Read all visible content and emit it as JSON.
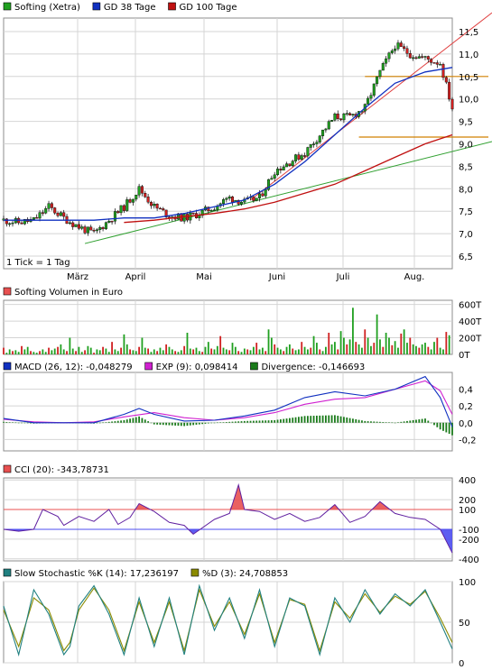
{
  "colors": {
    "background": "#ffffff",
    "grid": "#d4d4d4",
    "frame": "#8c8c8c",
    "candle_up": "#20a020",
    "candle_down": "#d02020",
    "sma38": "#1030c0",
    "sma100": "#c01010",
    "trend_red": "#e04040",
    "trend_green": "#30a030",
    "orange_line": "#d08000",
    "macd": "#1030c0",
    "signal": "#d020d0",
    "divergence": "#1a7a1a",
    "cci_pos_fill": "#e85050",
    "cci_neg_fill": "#4d4df0",
    "cci_line": "#6020a0",
    "stoch_k": "#208080",
    "stoch_d": "#8a8a00"
  },
  "x_axis": {
    "months": [
      "März",
      "April",
      "Mai",
      "Juni",
      "Juli",
      "Aug."
    ],
    "tick_note": "1 Tick = 1 Tag"
  },
  "price_panel": {
    "legend": [
      {
        "label": "Softing (Xetra)",
        "color": "#20a020"
      },
      {
        "label": "GD 38 Tage",
        "color": "#1030c0"
      },
      {
        "label": "GD 100 Tage",
        "color": "#c01010"
      }
    ],
    "y_ticks": [
      "11,5",
      "11,0",
      "10,5",
      "10,0",
      "9,5",
      "9,0",
      "8,5",
      "8,0",
      "7,5",
      "7,0",
      "6,5"
    ]
  },
  "volume_panel": {
    "legend": [
      {
        "label": "Softing Volumen in Euro",
        "color": "#e85050"
      }
    ],
    "y_ticks": [
      "600T",
      "400T",
      "200T",
      "0T"
    ]
  },
  "macd_panel": {
    "legend": [
      {
        "label": "MACD (26, 12): -0,048279",
        "color": "#1030c0"
      },
      {
        "label": "EXP (9): 0,098414",
        "color": "#d020d0"
      },
      {
        "label": "Divergence: -0,146693",
        "color": "#1a7a1a"
      }
    ],
    "y_ticks": [
      "0,4",
      "0,2",
      "0,0",
      "-0,2"
    ]
  },
  "cci_panel": {
    "legend": [
      {
        "label": "CCI (20): -343,78731",
        "color": "#e85050"
      }
    ],
    "y_ticks": [
      "400",
      "200",
      "100",
      "-100",
      "-200",
      "-400"
    ]
  },
  "stoch_panel": {
    "legend": [
      {
        "label": "Slow Stochastic %K (14): 17,236197",
        "color": "#208080"
      },
      {
        "label": "%D (3): 24,708853",
        "color": "#8a8a00"
      }
    ],
    "y_ticks": [
      "100",
      "50",
      "0"
    ]
  },
  "chart_data": [
    {
      "type": "line",
      "title": "Softing (Xetra)",
      "x_months": [
        "März",
        "April",
        "Mai",
        "Juni",
        "Juli",
        "Aug."
      ],
      "ylim": [
        6.4,
        11.8
      ],
      "series": [
        {
          "name": "Softing (Xetra)",
          "x": [
            0,
            5,
            10,
            15,
            20,
            25,
            30,
            35,
            40,
            45,
            50,
            55,
            60,
            65,
            70,
            75,
            80,
            85,
            90,
            95,
            100,
            105,
            110,
            115,
            120,
            125,
            130,
            135,
            140,
            145,
            149
          ],
          "values": [
            7.3,
            7.25,
            7.3,
            7.6,
            7.35,
            7.15,
            7.0,
            7.3,
            7.6,
            8.0,
            7.6,
            7.4,
            7.35,
            7.45,
            7.6,
            7.8,
            7.7,
            7.8,
            8.4,
            8.6,
            8.8,
            9.2,
            9.6,
            9.6,
            9.8,
            10.6,
            11.2,
            11.0,
            10.9,
            10.8,
            9.8
          ]
        },
        {
          "name": "GD 38 Tage",
          "x": [
            0,
            10,
            20,
            30,
            40,
            50,
            60,
            70,
            80,
            90,
            100,
            110,
            120,
            130,
            140,
            149
          ],
          "values": [
            7.3,
            7.3,
            7.3,
            7.3,
            7.35,
            7.35,
            7.45,
            7.6,
            7.75,
            8.1,
            8.6,
            9.2,
            9.8,
            10.35,
            10.6,
            10.7
          ]
        },
        {
          "name": "GD 100 Tage",
          "x": [
            40,
            50,
            60,
            70,
            80,
            90,
            100,
            110,
            120,
            130,
            140,
            149
          ],
          "values": [
            7.25,
            7.3,
            7.38,
            7.45,
            7.55,
            7.7,
            7.9,
            8.1,
            8.4,
            8.7,
            9.0,
            9.2
          ]
        }
      ]
    },
    {
      "type": "bar",
      "title": "Softing Volumen in Euro",
      "ylim": [
        0,
        650
      ],
      "values": [
        80,
        20,
        60,
        40,
        50,
        30,
        100,
        60,
        90,
        40,
        30,
        20,
        40,
        60,
        30,
        80,
        50,
        70,
        90,
        120,
        60,
        40,
        200,
        70,
        40,
        90,
        30,
        50,
        100,
        80,
        20,
        60,
        50,
        90,
        70,
        30,
        150,
        60,
        40,
        80,
        240,
        120,
        60,
        50,
        40,
        90,
        200,
        80,
        70,
        30,
        60,
        40,
        80,
        50,
        120,
        90,
        60,
        40,
        30,
        50,
        100,
        260,
        70,
        60,
        80,
        40,
        30,
        90,
        150,
        70,
        60,
        100,
        220,
        80,
        60,
        50,
        140,
        90,
        40,
        30,
        70,
        60,
        50,
        90,
        140,
        60,
        80,
        40,
        300,
        200,
        120,
        80,
        60,
        40,
        90,
        120,
        70,
        50,
        60,
        150,
        90,
        60,
        80,
        220,
        140,
        60,
        40,
        90,
        260,
        120,
        150,
        60,
        280,
        200,
        120,
        180,
        560,
        150,
        120,
        80,
        300,
        200,
        100,
        140,
        480,
        180,
        90,
        260,
        200,
        110,
        160,
        80,
        250,
        300,
        140,
        200,
        120,
        100,
        80,
        120,
        140,
        90,
        60,
        150,
        200,
        80,
        60,
        270,
        230
      ]
    },
    {
      "type": "line",
      "title": "MACD (26, 12)",
      "ylim": [
        -0.25,
        0.65
      ],
      "series": [
        {
          "name": "MACD (26, 12)",
          "x": [
            0,
            10,
            20,
            30,
            40,
            45,
            50,
            60,
            70,
            80,
            90,
            100,
            110,
            120,
            130,
            140,
            145,
            149
          ],
          "values": [
            0.05,
            0.0,
            0.0,
            0.0,
            0.1,
            0.17,
            0.1,
            0.02,
            0.03,
            0.08,
            0.15,
            0.3,
            0.37,
            0.32,
            0.4,
            0.55,
            0.3,
            -0.05
          ]
        },
        {
          "name": "EXP (9)",
          "x": [
            0,
            10,
            20,
            30,
            40,
            50,
            60,
            70,
            80,
            90,
            100,
            110,
            120,
            130,
            140,
            145,
            149
          ],
          "values": [
            0.04,
            0.01,
            0.0,
            0.01,
            0.07,
            0.12,
            0.06,
            0.03,
            0.06,
            0.12,
            0.22,
            0.28,
            0.3,
            0.4,
            0.5,
            0.38,
            0.1
          ]
        }
      ]
    },
    {
      "type": "area",
      "title": "CCI (20)",
      "ylim": [
        -450,
        450
      ],
      "series": [
        {
          "name": "CCI (20)",
          "x": [
            0,
            5,
            10,
            13,
            18,
            20,
            25,
            30,
            35,
            38,
            42,
            45,
            50,
            55,
            60,
            63,
            70,
            75,
            78,
            80,
            85,
            90,
            95,
            100,
            105,
            110,
            115,
            120,
            125,
            130,
            135,
            140,
            145,
            149
          ],
          "values": [
            -100,
            -120,
            -100,
            100,
            30,
            -60,
            30,
            -20,
            100,
            -50,
            20,
            160,
            80,
            -30,
            -60,
            -150,
            0,
            60,
            350,
            100,
            80,
            0,
            60,
            -20,
            20,
            150,
            -30,
            30,
            180,
            60,
            20,
            0,
            -100,
            -340
          ]
        }
      ]
    },
    {
      "type": "line",
      "title": "Slow Stochastic",
      "ylim": [
        0,
        100
      ],
      "series": [
        {
          "name": "Slow Stochastic %K (14)",
          "x": [
            0,
            5,
            10,
            15,
            20,
            22,
            25,
            30,
            35,
            40,
            45,
            50,
            55,
            60,
            65,
            70,
            75,
            80,
            85,
            90,
            95,
            100,
            105,
            110,
            115,
            120,
            125,
            130,
            135,
            140,
            145,
            149
          ],
          "values": [
            70,
            10,
            90,
            60,
            10,
            20,
            70,
            95,
            60,
            10,
            80,
            20,
            80,
            10,
            95,
            40,
            80,
            30,
            90,
            20,
            80,
            70,
            10,
            80,
            50,
            90,
            60,
            85,
            70,
            90,
            50,
            17
          ]
        },
        {
          "name": "%D (3)",
          "x": [
            0,
            5,
            10,
            15,
            20,
            22,
            25,
            30,
            35,
            40,
            45,
            50,
            55,
            60,
            65,
            70,
            75,
            80,
            85,
            90,
            95,
            100,
            105,
            110,
            115,
            120,
            125,
            130,
            135,
            140,
            145,
            149
          ],
          "values": [
            65,
            20,
            80,
            65,
            15,
            25,
            65,
            92,
            65,
            15,
            75,
            25,
            75,
            15,
            90,
            45,
            75,
            35,
            85,
            25,
            78,
            72,
            15,
            75,
            55,
            85,
            62,
            82,
            72,
            88,
            55,
            25
          ]
        }
      ]
    }
  ]
}
